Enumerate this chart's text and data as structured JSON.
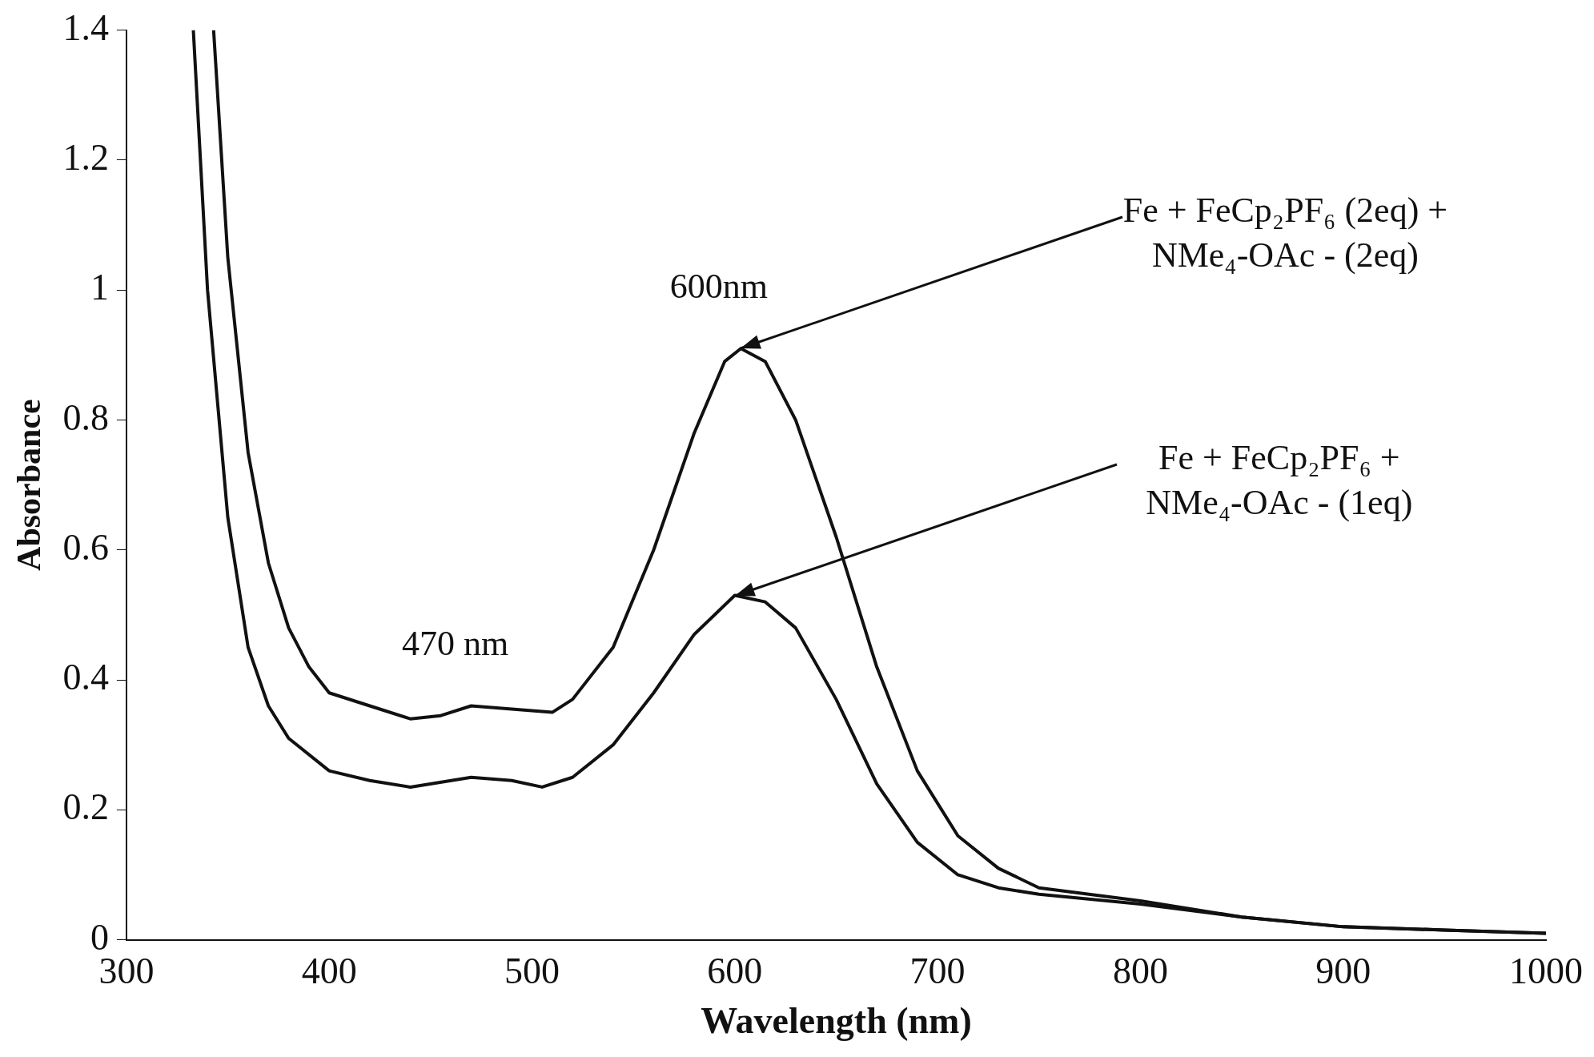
{
  "chart_data": {
    "type": "line",
    "xlabel": "Wavelength (nm)",
    "ylabel": "Absorbance",
    "xlim": [
      300,
      1000
    ],
    "ylim": [
      0,
      1.4
    ],
    "xticks": [
      300,
      400,
      500,
      600,
      700,
      800,
      900,
      1000
    ],
    "yticks": [
      0,
      0.2,
      0.4,
      0.6,
      0.8,
      1,
      1.2,
      1.4
    ],
    "grid": false,
    "legend": false,
    "marker": "none",
    "line_style": "solid",
    "series": [
      {
        "color": "#111111",
        "x": [
          343,
          350,
          360,
          370,
          380,
          390,
          400,
          420,
          440,
          455,
          470,
          490,
          510,
          520,
          540,
          560,
          580,
          595,
          603,
          615,
          630,
          650,
          670,
          690,
          710,
          730,
          750,
          800,
          850,
          900,
          950,
          1000
        ],
        "values": [
          1.4,
          1.05,
          0.75,
          0.58,
          0.48,
          0.42,
          0.38,
          0.36,
          0.34,
          0.345,
          0.36,
          0.355,
          0.35,
          0.37,
          0.45,
          0.6,
          0.78,
          0.89,
          0.91,
          0.89,
          0.8,
          0.62,
          0.42,
          0.26,
          0.16,
          0.11,
          0.08,
          0.06,
          0.035,
          0.02,
          0.015,
          0.01
        ]
      },
      {
        "color": "#111111",
        "x": [
          333,
          340,
          350,
          360,
          370,
          380,
          400,
          420,
          440,
          470,
          490,
          505,
          520,
          540,
          560,
          580,
          600,
          615,
          630,
          650,
          670,
          690,
          710,
          730,
          750,
          800,
          850,
          900,
          950,
          1000
        ],
        "values": [
          1.4,
          1.0,
          0.65,
          0.45,
          0.36,
          0.31,
          0.26,
          0.245,
          0.235,
          0.25,
          0.245,
          0.235,
          0.25,
          0.3,
          0.38,
          0.47,
          0.53,
          0.52,
          0.48,
          0.37,
          0.24,
          0.15,
          0.1,
          0.08,
          0.07,
          0.055,
          0.035,
          0.02,
          0.015,
          0.01
        ]
      }
    ],
    "annotations": [
      {
        "text": "600nm",
        "x": 600,
        "y": 0.91
      },
      {
        "text": "470 nm",
        "x": 470,
        "y": 0.36
      },
      {
        "text": "Fe + FeCp₂PF₆ (2eq) + NMe₄-OAc - (2eq)",
        "x": 603,
        "y": 0.91
      },
      {
        "text": "Fe + FeCp₂PF₆ + NMe₄-OAc - (1eq)",
        "x": 600,
        "y": 0.53
      }
    ]
  }
}
